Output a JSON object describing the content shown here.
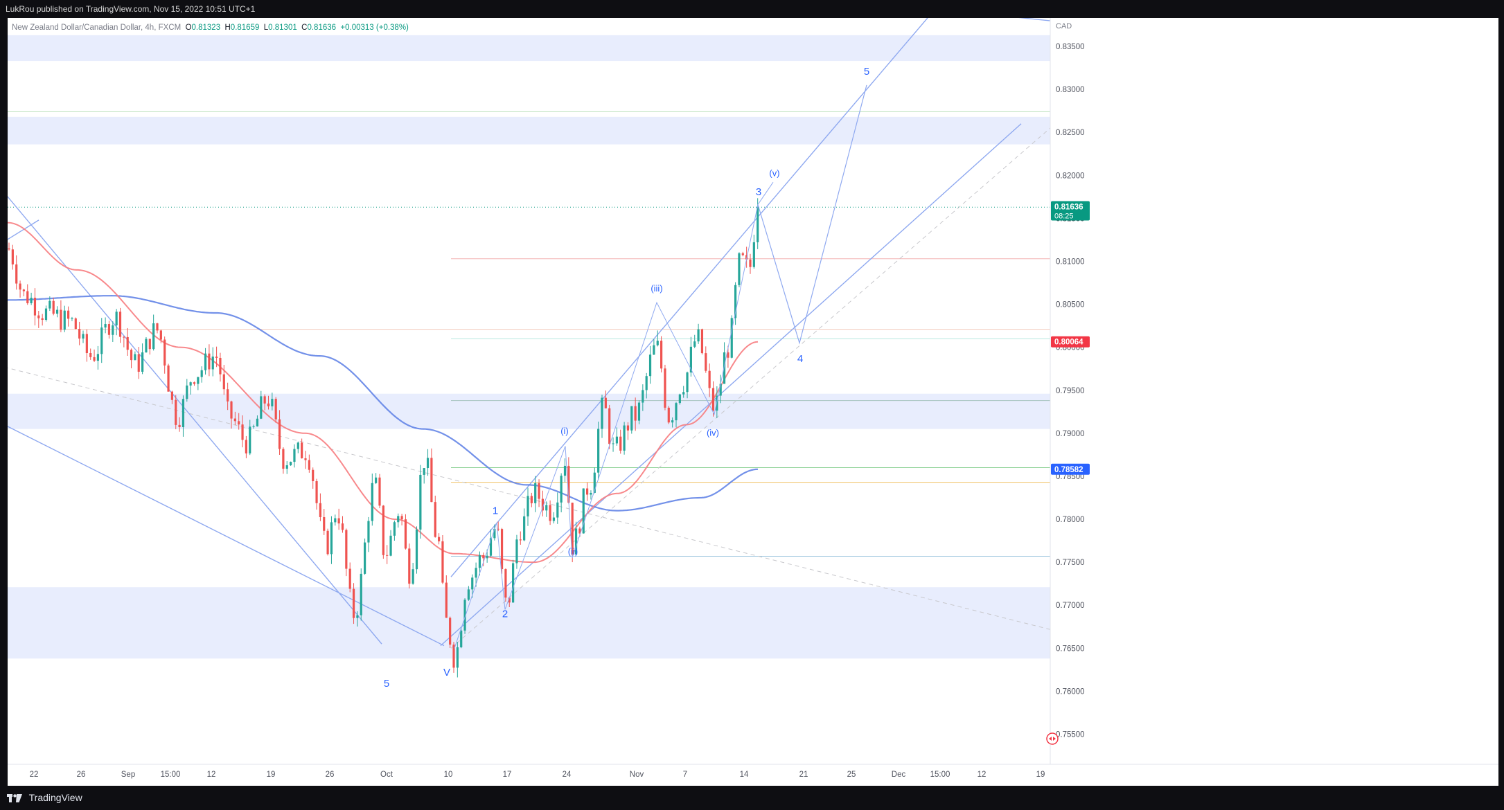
{
  "header": {
    "publish_line": "LukRou published on TradingView.com, Nov 15, 2022 10:51 UTC+1"
  },
  "legend": {
    "symbol": "New Zealand Dollar/Canadian Dollar, 4h, FXCM",
    "o_label": "O",
    "o_value": "0.81323",
    "h_label": "H",
    "h_value": "0.81659",
    "l_label": "L",
    "l_value": "0.81301",
    "c_label": "C",
    "c_value": "0.81636",
    "change": "+0.00313 (+0.38%)"
  },
  "price_axis": {
    "currency": "CAD",
    "ticks": [
      "0.83500",
      "0.83000",
      "0.82500",
      "0.82000",
      "0.81500",
      "0.81000",
      "0.80500",
      "0.80000",
      "0.79500",
      "0.79000",
      "0.78500",
      "0.78000",
      "0.77500",
      "0.77000",
      "0.76500",
      "0.76000",
      "0.75500"
    ],
    "current_price": "0.81636",
    "countdown": "08:25",
    "ema_label": "0.80064",
    "sma_label": "0.78582"
  },
  "time_axis": {
    "labels": [
      "22",
      "26",
      "Sep",
      "15:00",
      "12",
      "19",
      "26",
      "Oct",
      "10",
      "17",
      "24",
      "Nov",
      "7",
      "14",
      "21",
      "25",
      "Dec",
      "15:00",
      "12",
      "19"
    ]
  },
  "wave_labels": [
    "5",
    "V",
    "1",
    "2",
    "(i)",
    "(ii)",
    "(iii)",
    "(iv)",
    "3",
    "(v)",
    "4",
    "5"
  ],
  "footer": {
    "brand": "TradingView"
  },
  "colors": {
    "up": "#26a69a",
    "down": "#ef5350",
    "ema": "#f77c80",
    "sma": "#5b7ee5",
    "lines": "#8fa9f0",
    "zones": "#e8edfd",
    "badge_green": "#089981",
    "badge_red": "#f23645",
    "badge_blue": "#2962ff"
  },
  "chart_data": {
    "type": "candlestick",
    "symbol": "New Zealand Dollar/Canadian Dollar",
    "interval": "4h",
    "ylim": [
      0.7515,
      0.8383
    ],
    "last_close": 0.81636,
    "anchors": [
      {
        "t": 0,
        "p": 0.8115
      },
      {
        "t": 25,
        "p": 0.806
      },
      {
        "t": 55,
        "p": 0.804
      },
      {
        "t": 90,
        "p": 0.803
      },
      {
        "t": 120,
        "p": 0.799
      },
      {
        "t": 155,
        "p": 0.8035
      },
      {
        "t": 185,
        "p": 0.798
      },
      {
        "t": 215,
        "p": 0.802
      },
      {
        "t": 245,
        "p": 0.792
      },
      {
        "t": 270,
        "p": 0.797
      },
      {
        "t": 300,
        "p": 0.799
      },
      {
        "t": 320,
        "p": 0.792
      },
      {
        "t": 345,
        "p": 0.789
      },
      {
        "t": 375,
        "p": 0.794
      },
      {
        "t": 400,
        "p": 0.787
      },
      {
        "t": 430,
        "p": 0.788
      },
      {
        "t": 460,
        "p": 0.777
      },
      {
        "t": 475,
        "p": 0.781
      },
      {
        "t": 500,
        "p": 0.769
      },
      {
        "t": 530,
        "p": 0.784
      },
      {
        "t": 545,
        "p": 0.776
      },
      {
        "t": 565,
        "p": 0.781
      },
      {
        "t": 580,
        "p": 0.774
      },
      {
        "t": 602,
        "p": 0.787
      },
      {
        "t": 620,
        "p": 0.778
      },
      {
        "t": 633,
        "p": 0.768
      },
      {
        "t": 645,
        "p": 0.764
      },
      {
        "t": 665,
        "p": 0.773
      },
      {
        "t": 685,
        "p": 0.7755
      },
      {
        "t": 705,
        "p": 0.779
      },
      {
        "t": 720,
        "p": 0.77
      },
      {
        "t": 740,
        "p": 0.779
      },
      {
        "t": 760,
        "p": 0.783
      },
      {
        "t": 785,
        "p": 0.781
      },
      {
        "t": 805,
        "p": 0.787
      },
      {
        "t": 815,
        "p": 0.777
      },
      {
        "t": 840,
        "p": 0.784
      },
      {
        "t": 860,
        "p": 0.793
      },
      {
        "t": 875,
        "p": 0.788
      },
      {
        "t": 905,
        "p": 0.792
      },
      {
        "t": 937,
        "p": 0.8
      },
      {
        "t": 955,
        "p": 0.792
      },
      {
        "t": 975,
        "p": 0.796
      },
      {
        "t": 995,
        "p": 0.801
      },
      {
        "t": 1020,
        "p": 0.793
      },
      {
        "t": 1040,
        "p": 0.8
      },
      {
        "t": 1058,
        "p": 0.81
      },
      {
        "t": 1070,
        "p": 0.809
      },
      {
        "t": 1083,
        "p": 0.81636
      }
    ],
    "ema_anchors": [
      {
        "t": 0,
        "p": 0.8145
      },
      {
        "t": 100,
        "p": 0.809
      },
      {
        "t": 250,
        "p": 0.8
      },
      {
        "t": 430,
        "p": 0.79
      },
      {
        "t": 560,
        "p": 0.78
      },
      {
        "t": 645,
        "p": 0.776
      },
      {
        "t": 760,
        "p": 0.775
      },
      {
        "t": 880,
        "p": 0.783
      },
      {
        "t": 980,
        "p": 0.791
      },
      {
        "t": 1083,
        "p": 0.80064
      }
    ],
    "sma_anchors": [
      {
        "t": 0,
        "p": 0.8055
      },
      {
        "t": 150,
        "p": 0.806
      },
      {
        "t": 300,
        "p": 0.804
      },
      {
        "t": 450,
        "p": 0.799
      },
      {
        "t": 600,
        "p": 0.7905
      },
      {
        "t": 750,
        "p": 0.784
      },
      {
        "t": 880,
        "p": 0.781
      },
      {
        "t": 1000,
        "p": 0.7825
      },
      {
        "t": 1083,
        "p": 0.78582
      }
    ],
    "zones": [
      [
        0.8333,
        0.8363
      ],
      [
        0.8236,
        0.8268
      ],
      [
        0.7905,
        0.7946
      ],
      [
        0.7638,
        0.7721
      ]
    ],
    "horizontal_lines": [
      {
        "price": 0.8274,
        "from": 0,
        "color": "#b8e0b8"
      },
      {
        "price": 0.8163,
        "from": 0,
        "color": "#089981",
        "dotted": true
      },
      {
        "price": 0.8103,
        "from": 640,
        "color": "#f3b0b0"
      },
      {
        "price": 0.8021,
        "from": 0,
        "color": "#f3c8b8"
      },
      {
        "price": 0.801,
        "from": 640,
        "color": "#b8e8e0"
      },
      {
        "price": 0.7938,
        "from": 640,
        "color": "#a8c4c0"
      },
      {
        "price": 0.786,
        "from": 640,
        "color": "#88d090"
      },
      {
        "price": 0.7843,
        "from": 640,
        "color": "#f0c060"
      },
      {
        "price": 0.7757,
        "from": 640,
        "color": "#a0c8e0"
      }
    ],
    "trend_lines": [
      {
        "t1": -5,
        "p1": 0.8123,
        "t2": 45,
        "p2": 0.8148
      },
      {
        "t1": -5,
        "p1": 0.818,
        "t2": 540,
        "p2": 0.7655
      },
      {
        "t1": -5,
        "p1": 0.791,
        "t2": 630,
        "p2": 0.7653
      },
      {
        "t1": 625,
        "p1": 0.7653,
        "t2": 1463,
        "p2": 0.826
      },
      {
        "t1": 640,
        "p1": 0.7733,
        "t2": 1330,
        "p2": 0.8385
      },
      {
        "t1": 1310,
        "p1": 0.8396,
        "t2": 1514,
        "p2": 0.8379
      }
    ],
    "dashed_lines": [
      {
        "t1": -5,
        "p1": 0.7977,
        "t2": 1514,
        "p2": 0.767
      },
      {
        "t1": 640,
        "p1": 0.765,
        "t2": 1505,
        "p2": 0.8255
      }
    ],
    "wave_path": [
      {
        "t": 645,
        "p": 0.765
      },
      {
        "t": 706,
        "p": 0.7796
      },
      {
        "t": 718,
        "p": 0.7695
      },
      {
        "t": 805,
        "p": 0.7885
      },
      {
        "t": 815,
        "p": 0.7755
      },
      {
        "t": 937,
        "p": 0.8052
      },
      {
        "t": 1020,
        "p": 0.7922
      },
      {
        "t": 1083,
        "p": 0.8166
      },
      {
        "t": 1105,
        "p": 0.8192
      }
    ],
    "projection_path": [
      {
        "t": 1083,
        "p": 0.8166
      },
      {
        "t": 1143,
        "p": 0.8005
      },
      {
        "t": 1240,
        "p": 0.8305
      }
    ],
    "wave_label_points": [
      {
        "t": 547,
        "p": 0.7605
      },
      {
        "t": 634,
        "p": 0.7618
      },
      {
        "t": 704,
        "p": 0.7806
      },
      {
        "t": 718,
        "p": 0.7686
      },
      {
        "t": 804,
        "p": 0.7899
      },
      {
        "t": 816,
        "p": 0.7759
      },
      {
        "t": 937,
        "p": 0.8065
      },
      {
        "t": 1018,
        "p": 0.7897
      },
      {
        "t": 1084,
        "p": 0.8177
      },
      {
        "t": 1107,
        "p": 0.8199
      },
      {
        "t": 1144,
        "p": 0.7983
      },
      {
        "t": 1240,
        "p": 0.8317
      }
    ],
    "time_tick_positions": [
      38,
      106,
      174,
      235,
      294,
      380,
      465,
      547,
      636,
      721,
      807,
      908,
      978,
      1063,
      1149,
      1218,
      1286,
      1346,
      1406,
      1491
    ]
  }
}
